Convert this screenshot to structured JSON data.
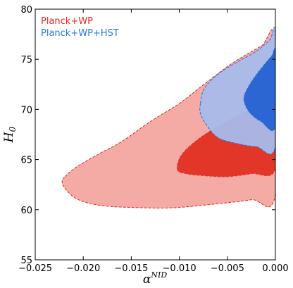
{
  "chart_data": {
    "type": "contour",
    "xlabel": "α",
    "xlabel_sup": "NID",
    "ylabel": "H",
    "ylabel_sub": "0",
    "xlim": [
      -0.025,
      0.0
    ],
    "ylim": [
      55,
      80
    ],
    "x_ticks": [
      -0.025,
      -0.02,
      -0.015,
      -0.01,
      -0.005,
      0.0
    ],
    "x_tick_labels": [
      "−0.025",
      "−0.020",
      "−0.015",
      "−0.010",
      "−0.005",
      "0.000"
    ],
    "y_ticks": [
      55,
      60,
      65,
      70,
      75,
      80
    ],
    "y_tick_labels": [
      "55",
      "60",
      "65",
      "70",
      "75",
      "80"
    ],
    "legend": {
      "placement": "top-left",
      "entries": [
        {
          "label": "Planck+WP",
          "color": "#e8281e"
        },
        {
          "label": "Planck+WP+HST",
          "color": "#2b78dc"
        }
      ]
    },
    "series": [
      {
        "name": "Planck+WP",
        "level": "95%",
        "fill": "#f4aaa5",
        "edge": "#e8281e",
        "points": [
          [
            -0.0219,
            63.3
          ],
          [
            -0.0208,
            64.2
          ],
          [
            -0.0185,
            65.5
          ],
          [
            -0.016,
            66.8
          ],
          [
            -0.013,
            68.8
          ],
          [
            -0.01,
            70.6
          ],
          [
            -0.0073,
            72.6
          ],
          [
            -0.0045,
            74.6
          ],
          [
            -0.0015,
            76.3
          ],
          [
            0.0,
            77.0
          ],
          [
            0.0,
            61.6
          ],
          [
            -0.0025,
            61.0
          ],
          [
            -0.006,
            60.6
          ],
          [
            -0.0105,
            60.2
          ],
          [
            -0.014,
            60.2
          ],
          [
            -0.018,
            60.4
          ],
          [
            -0.0205,
            61.0
          ],
          [
            -0.0218,
            62.0
          ],
          [
            -0.0222,
            62.8
          ]
        ]
      },
      {
        "name": "Planck+WP",
        "level": "68%",
        "fill": "#e23628",
        "edge": "#e8281e",
        "points": [
          [
            -0.0102,
            64.0
          ],
          [
            -0.0098,
            65.4
          ],
          [
            -0.0082,
            66.9
          ],
          [
            -0.006,
            68.3
          ],
          [
            -0.003,
            69.9
          ],
          [
            0.0,
            71.6
          ],
          [
            0.0,
            64.1
          ],
          [
            -0.0025,
            63.6
          ],
          [
            -0.005,
            63.3
          ],
          [
            -0.0075,
            63.4
          ],
          [
            -0.0093,
            63.6
          ]
        ]
      },
      {
        "name": "Planck+WP+HST",
        "level": "95%",
        "fill": "#a9bcec",
        "edge": "#2b78dc",
        "points": [
          [
            -0.0078,
            70.6
          ],
          [
            -0.0074,
            72.1
          ],
          [
            -0.006,
            73.5
          ],
          [
            -0.0042,
            74.6
          ],
          [
            -0.002,
            75.8
          ],
          [
            -0.0006,
            76.9
          ],
          [
            0.0,
            77.5
          ],
          [
            0.0,
            66.4
          ],
          [
            -0.002,
            66.3
          ],
          [
            -0.004,
            66.6
          ],
          [
            -0.006,
            67.2
          ],
          [
            -0.0072,
            68.5
          ],
          [
            -0.0078,
            69.6
          ]
        ]
      },
      {
        "name": "Planck+WP+HST",
        "level": "68%",
        "fill": "#2c66d2",
        "edge": "#2b78dc",
        "points": [
          [
            -0.0032,
            71.5
          ],
          [
            -0.0024,
            72.9
          ],
          [
            -0.0013,
            74.3
          ],
          [
            -0.0004,
            75.3
          ],
          [
            0.0,
            75.6
          ],
          [
            0.0,
            68.3
          ],
          [
            -0.0015,
            68.8
          ],
          [
            -0.0026,
            69.6
          ],
          [
            -0.0032,
            70.6
          ]
        ]
      }
    ]
  }
}
